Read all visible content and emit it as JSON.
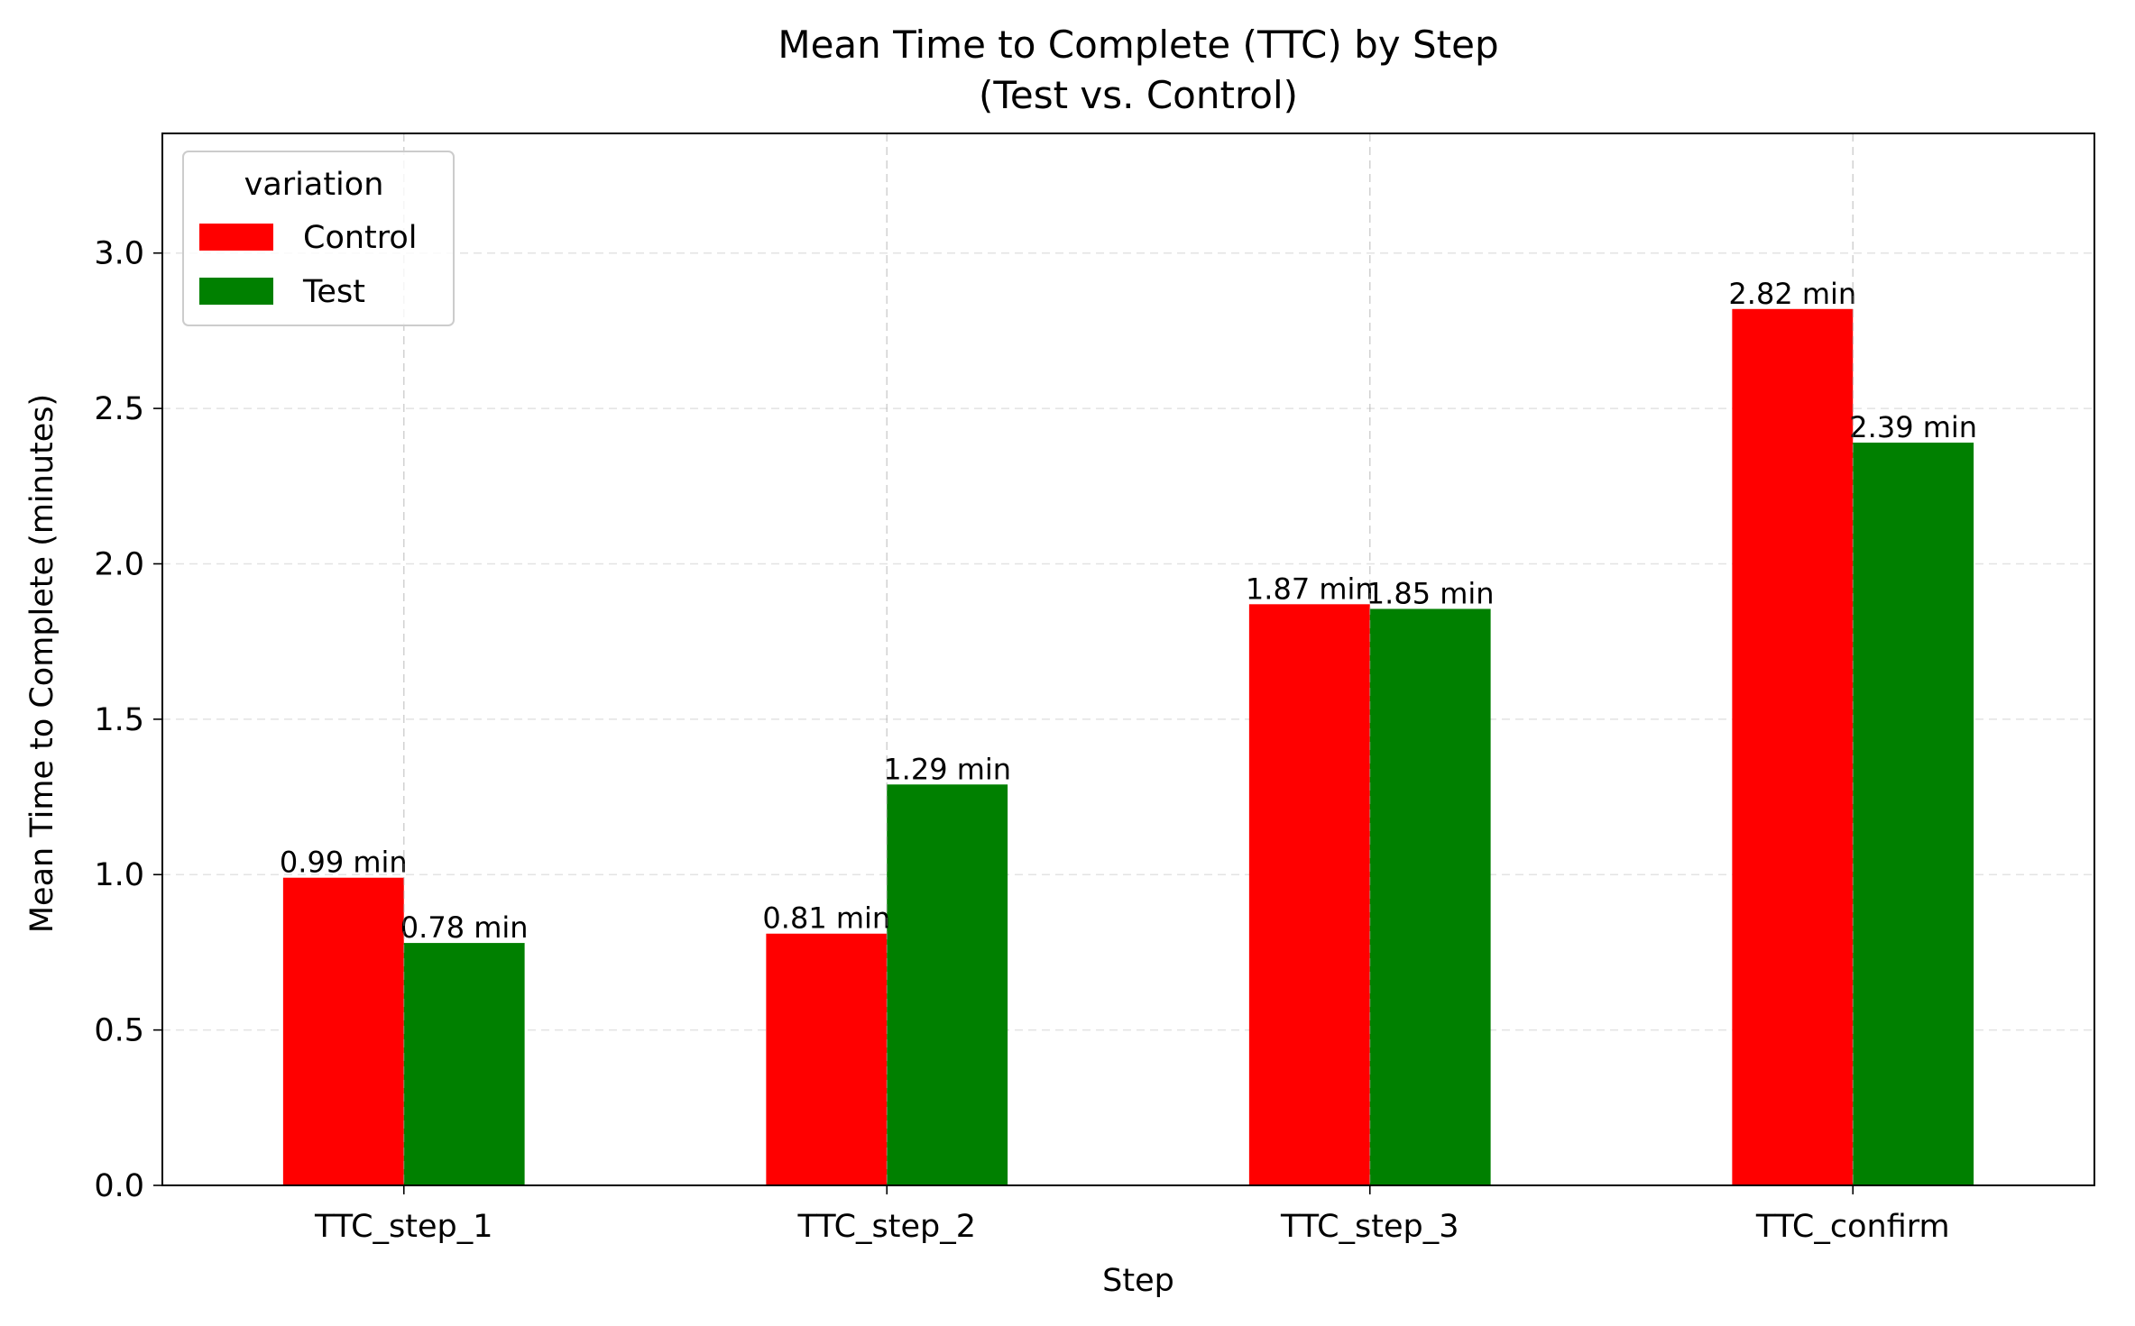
{
  "chart_data": {
    "type": "bar",
    "title": "Mean Time to Complete (TTC) by Step",
    "subtitle": "(Test vs. Control)",
    "xlabel": "Step",
    "ylabel": "Mean Time to Complete (minutes)",
    "categories": [
      "TTC_step_1",
      "TTC_step_2",
      "TTC_step_3",
      "TTC_confirm"
    ],
    "series": [
      {
        "name": "Control",
        "color": "#ff0000",
        "values": [
          0.99,
          0.81,
          1.87,
          2.82
        ],
        "labels": [
          "0.99 min",
          "0.81 min",
          "1.87 min",
          "2.82 min"
        ]
      },
      {
        "name": "Test",
        "color": "#008000",
        "values": [
          0.78,
          1.29,
          1.855,
          2.39
        ],
        "labels": [
          "0.78 min",
          "1.29 min",
          "1.85 min",
          "2.39 min"
        ]
      }
    ],
    "ylim": [
      0,
      3.385
    ],
    "yticks": [
      0.0,
      0.5,
      1.0,
      1.5,
      2.0,
      2.5,
      3.0
    ],
    "ytick_labels": [
      "0.0",
      "0.5",
      "1.0",
      "1.5",
      "2.0",
      "2.5",
      "3.0"
    ],
    "grid": true,
    "legend": {
      "title": "variation",
      "placement": "top-left"
    }
  }
}
